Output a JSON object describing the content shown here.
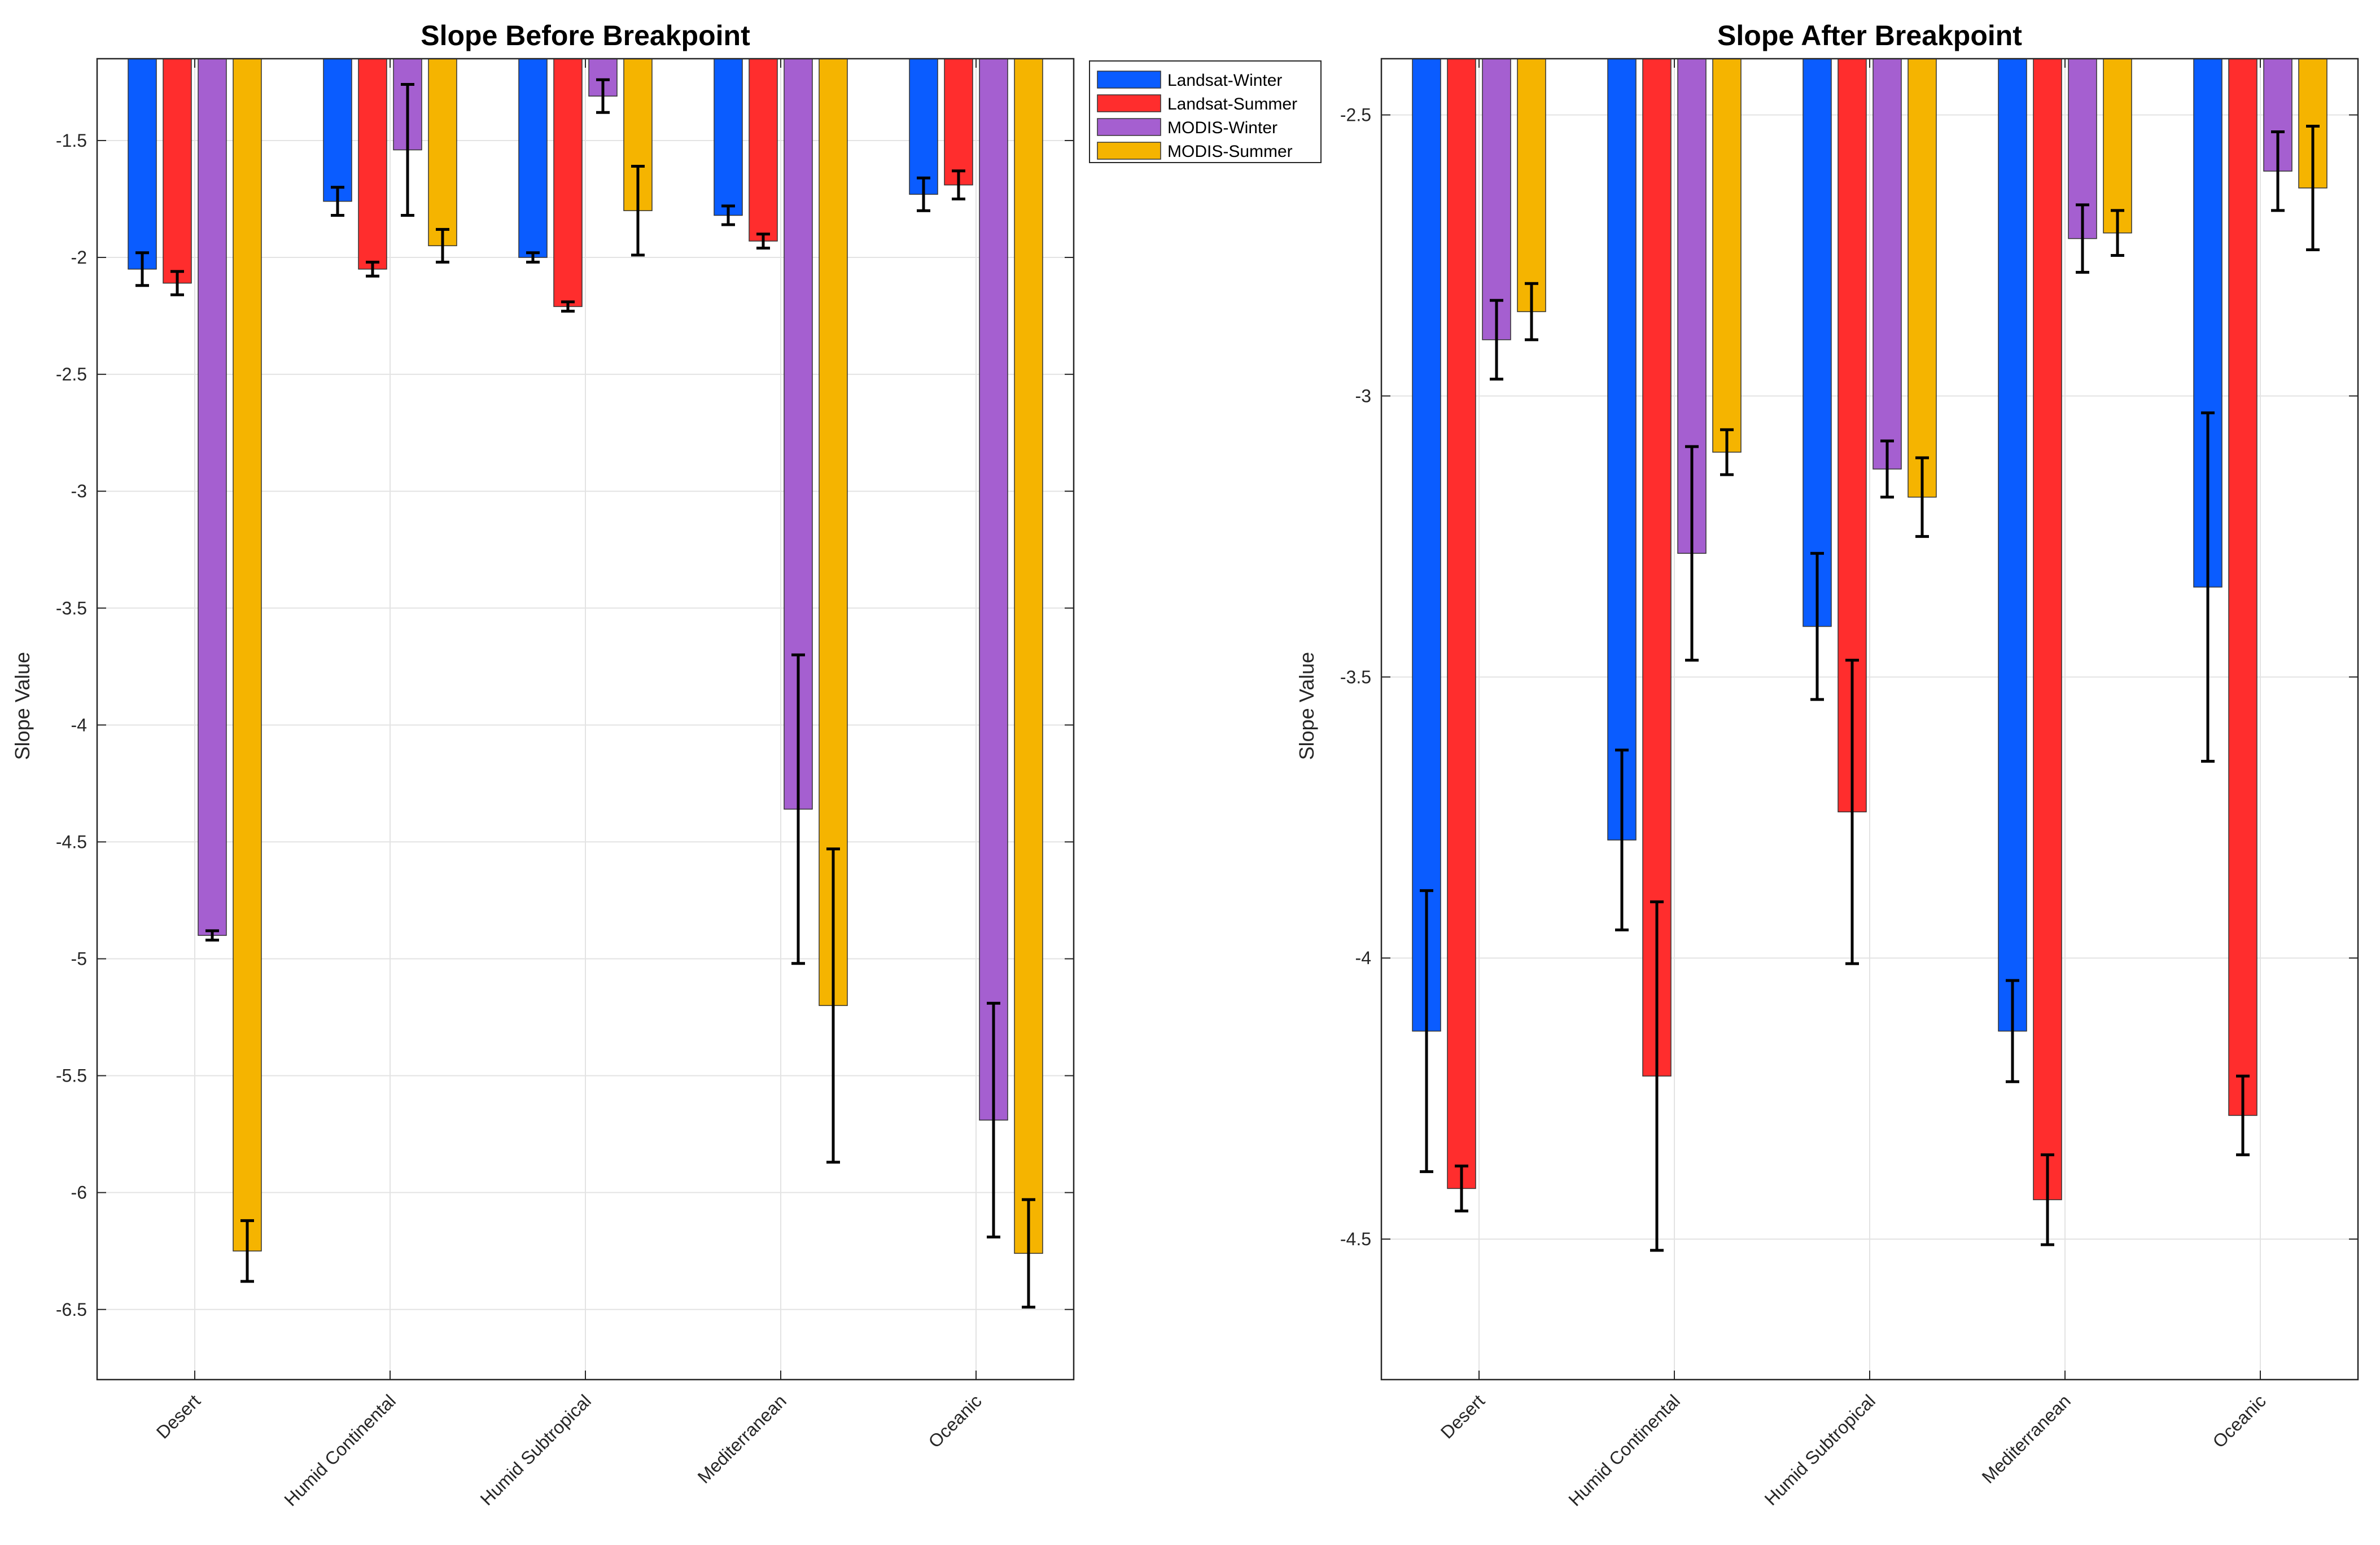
{
  "chart_data": [
    {
      "type": "bar",
      "title": "Slope Before Breakpoint",
      "xlabel": "",
      "ylabel": "Slope Value",
      "ylim": [
        -6.8,
        -1.15
      ],
      "yticks": [
        -1.5,
        -2,
        -2.5,
        -3,
        -3.5,
        -4,
        -4.5,
        -5,
        -5.5,
        -6,
        -6.5
      ],
      "ytick_labels": [
        "-1.5",
        "-2",
        "-2.5",
        "-3",
        "-3.5",
        "-4",
        "-4.5",
        "-5",
        "-5.5",
        "-6",
        "-6.5"
      ],
      "grid": true,
      "categories": [
        "Desert",
        "Humid Continental",
        "Humid Subtropical",
        "Mediterranean",
        "Oceanic"
      ],
      "series": [
        {
          "name": "Landsat-Winter",
          "color": "#0a5cff",
          "values": [
            -2.05,
            -1.76,
            -2.0,
            -1.82,
            -1.73
          ],
          "errors": [
            0.07,
            0.06,
            0.02,
            0.04,
            0.07
          ]
        },
        {
          "name": "Landsat-Summer",
          "color": "#ff2d2d",
          "values": [
            -2.11,
            -2.05,
            -2.21,
            -1.93,
            -1.69
          ],
          "errors": [
            0.05,
            0.03,
            0.02,
            0.03,
            0.06
          ]
        },
        {
          "name": "MODIS-Winter",
          "color": "#a55fd0",
          "values": [
            -4.9,
            -1.54,
            -1.31,
            -4.36,
            -5.69
          ],
          "errors": [
            0.02,
            0.28,
            0.07,
            0.66,
            0.5
          ]
        },
        {
          "name": "MODIS-Summer",
          "color": "#f5b400",
          "values": [
            -6.25,
            -1.95,
            -1.8,
            -5.2,
            -6.26
          ],
          "errors": [
            0.13,
            0.07,
            0.19,
            0.67,
            0.23
          ]
        }
      ]
    },
    {
      "type": "bar",
      "title": "Slope After Breakpoint",
      "xlabel": "",
      "ylabel": "Slope Value",
      "ylim": [
        -4.75,
        -2.4
      ],
      "yticks": [
        -2.5,
        -3,
        -3.5,
        -4,
        -4.5
      ],
      "ytick_labels": [
        "-2.5",
        "-3",
        "-3.5",
        "-4",
        "-4.5"
      ],
      "grid": true,
      "categories": [
        "Desert",
        "Humid Continental",
        "Humid Subtropical",
        "Mediterranean",
        "Oceanic"
      ],
      "series": [
        {
          "name": "Landsat-Winter",
          "color": "#0a5cff",
          "values": [
            -4.13,
            -3.79,
            -3.41,
            -4.13,
            -3.34
          ],
          "errors": [
            0.25,
            0.16,
            0.13,
            0.09,
            0.31
          ]
        },
        {
          "name": "Landsat-Summer",
          "color": "#ff2d2d",
          "values": [
            -4.41,
            -4.21,
            -3.74,
            -4.43,
            -4.28
          ],
          "errors": [
            0.04,
            0.31,
            0.27,
            0.08,
            0.07
          ]
        },
        {
          "name": "MODIS-Winter",
          "color": "#a55fd0",
          "values": [
            -2.9,
            -3.28,
            -3.13,
            -2.72,
            -2.6
          ],
          "errors": [
            0.07,
            0.19,
            0.05,
            0.06,
            0.07
          ]
        },
        {
          "name": "MODIS-Summer",
          "color": "#f5b400",
          "values": [
            -2.85,
            -3.1,
            -3.18,
            -2.71,
            -2.63
          ],
          "errors": [
            0.05,
            0.04,
            0.07,
            0.04,
            0.11
          ]
        }
      ]
    }
  ],
  "legend": {
    "position": "top-right of first panel",
    "entries": [
      {
        "label": "Landsat-Winter",
        "color": "#0a5cff"
      },
      {
        "label": "Landsat-Summer",
        "color": "#ff2d2d"
      },
      {
        "label": "MODIS-Winter",
        "color": "#a55fd0"
      },
      {
        "label": "MODIS-Summer",
        "color": "#f5b400"
      }
    ]
  }
}
